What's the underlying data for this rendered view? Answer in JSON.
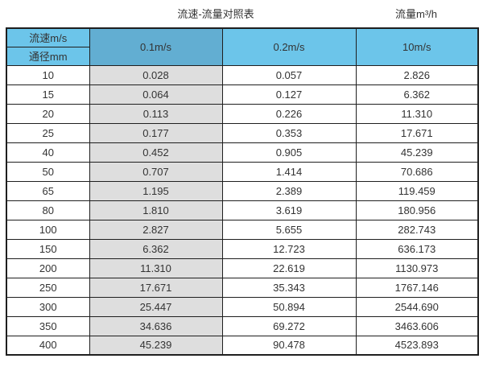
{
  "chart_data": {
    "type": "table",
    "title": "流速-流量对照表",
    "right_label": "流量m³/h",
    "corner_top": "流速m/s",
    "corner_bottom": "通径mm",
    "velocity_columns": [
      "0.1m/s",
      "0.2m/s",
      "10m/s"
    ],
    "rows": [
      {
        "diameter": "10",
        "flows": [
          "0.028",
          "0.057",
          "2.826"
        ]
      },
      {
        "diameter": "15",
        "flows": [
          "0.064",
          "0.127",
          "6.362"
        ]
      },
      {
        "diameter": "20",
        "flows": [
          "0.113",
          "0.226",
          "11.310"
        ]
      },
      {
        "diameter": "25",
        "flows": [
          "0.177",
          "0.353",
          "17.671"
        ]
      },
      {
        "diameter": "40",
        "flows": [
          "0.452",
          "0.905",
          "45.239"
        ]
      },
      {
        "diameter": "50",
        "flows": [
          "0.707",
          "1.414",
          "70.686"
        ]
      },
      {
        "diameter": "65",
        "flows": [
          "1.195",
          "2.389",
          "119.459"
        ]
      },
      {
        "diameter": "80",
        "flows": [
          "1.810",
          "3.619",
          "180.956"
        ]
      },
      {
        "diameter": "100",
        "flows": [
          "2.827",
          "5.655",
          "282.743"
        ]
      },
      {
        "diameter": "150",
        "flows": [
          "6.362",
          "12.723",
          "636.173"
        ]
      },
      {
        "diameter": "200",
        "flows": [
          "11.310",
          "22.619",
          "1130.973"
        ]
      },
      {
        "diameter": "250",
        "flows": [
          "17.671",
          "35.343",
          "1767.146"
        ]
      },
      {
        "diameter": "300",
        "flows": [
          "25.447",
          "50.894",
          "2544.690"
        ]
      },
      {
        "diameter": "350",
        "flows": [
          "34.636",
          "69.272",
          "3463.606"
        ]
      },
      {
        "diameter": "400",
        "flows": [
          "45.239",
          "90.478",
          "4523.893"
        ]
      }
    ]
  },
  "colors": {
    "header_blue": "#6cc5ea",
    "header_blue_dark": "#62aed2",
    "gray_column": "#dedede",
    "border": "#1f1f1f",
    "text": "#333333"
  }
}
